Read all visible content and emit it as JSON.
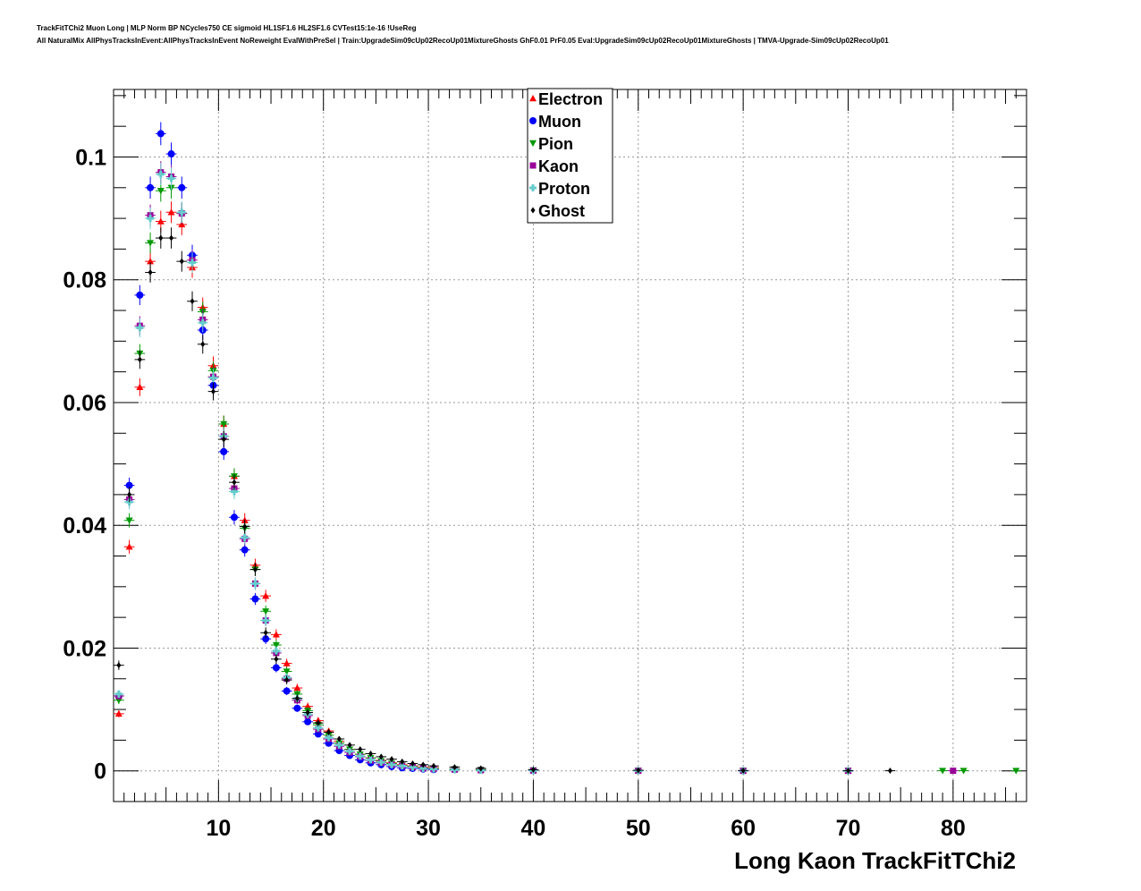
{
  "header": {
    "line1": "TrackFitTChi2 Muon Long | MLP Norm BP NCycles750 CE sigmoid HL1SF1.6 HL2SF1.6 CVTest15:1e-16 !UseReg",
    "line2": "All NaturalMix AllPhysTracksInEvent:AllPhysTracksInEvent NoReweight EvalWithPreSel | Train:UpgradeSim09cUp02RecoUp01MixtureGhosts GhF0.01 PrF0.05 Eval:UpgradeSim09cUp02RecoUp01MixtureGhosts | TMVA-Upgrade-Sim09cUp02RecoUp01"
  },
  "chart_data": {
    "type": "scatter",
    "title": "",
    "xlabel": "Long Kaon TrackFitTChi2",
    "ylabel": "",
    "xlim": [
      0,
      87
    ],
    "ylim": [
      -0.005,
      0.111
    ],
    "xticks": [
      10,
      20,
      30,
      40,
      50,
      60,
      70,
      80
    ],
    "yticks": [
      0,
      0.02,
      0.04,
      0.06,
      0.08,
      0.1
    ],
    "ytick_labels": [
      "0",
      "0.02",
      "0.04",
      "0.06",
      "0.08",
      "0.1"
    ],
    "grid": true,
    "legend_position": "top-center",
    "series": [
      {
        "name": "Electron",
        "color": "#ff0000",
        "marker": "triangle-up",
        "x": [
          0.5,
          1.5,
          2.5,
          3.5,
          4.5,
          5.5,
          6.5,
          7.5,
          8.5,
          9.5,
          10.5,
          11.5,
          12.5,
          13.5,
          14.5,
          15.5,
          16.5,
          17.5,
          18.5,
          19.5,
          20.5,
          21.5,
          22.5,
          23.5,
          24.5,
          25.5,
          26.5,
          27.5,
          28.5,
          29.5,
          30.5,
          32.5,
          35,
          40,
          50,
          60,
          70
        ],
        "y": [
          0.0093,
          0.0365,
          0.0625,
          0.083,
          0.0895,
          0.091,
          0.089,
          0.082,
          0.0755,
          0.066,
          0.0565,
          0.048,
          0.0408,
          0.0335,
          0.0285,
          0.0222,
          0.0175,
          0.0135,
          0.0105,
          0.0082,
          0.0065,
          0.0048,
          0.0035,
          0.0027,
          0.0021,
          0.0017,
          0.0013,
          0.001,
          0.0008,
          0.0006,
          0.0005,
          0.0003,
          0.0002,
          0.0001,
          5e-05,
          2e-05,
          1e-05
        ]
      },
      {
        "name": "Muon",
        "color": "#0000ff",
        "marker": "circle",
        "x": [
          0.5,
          1.5,
          2.5,
          3.5,
          4.5,
          5.5,
          6.5,
          7.5,
          8.5,
          9.5,
          10.5,
          11.5,
          12.5,
          13.5,
          14.5,
          15.5,
          16.5,
          17.5,
          18.5,
          19.5,
          20.5,
          21.5,
          22.5,
          23.5,
          24.5,
          25.5,
          26.5,
          27.5,
          28.5,
          29.5,
          30.5,
          32.5,
          35,
          40,
          50,
          60,
          70
        ],
        "y": [
          0.0122,
          0.0465,
          0.0775,
          0.095,
          0.1038,
          0.1005,
          0.095,
          0.084,
          0.0718,
          0.0628,
          0.052,
          0.0413,
          0.036,
          0.028,
          0.0215,
          0.0168,
          0.013,
          0.0102,
          0.008,
          0.006,
          0.0045,
          0.0033,
          0.0025,
          0.0018,
          0.0013,
          0.001,
          0.0007,
          0.0005,
          0.0004,
          0.0003,
          0.0002,
          0.0002,
          0.0001,
          5e-05,
          2e-05,
          1e-05,
          0.0
        ]
      },
      {
        "name": "Pion",
        "color": "#009900",
        "marker": "triangle-down",
        "x": [
          0.5,
          1.5,
          2.5,
          3.5,
          4.5,
          5.5,
          6.5,
          7.5,
          8.5,
          9.5,
          10.5,
          11.5,
          12.5,
          13.5,
          14.5,
          15.5,
          16.5,
          17.5,
          18.5,
          19.5,
          20.5,
          21.5,
          22.5,
          23.5,
          24.5,
          25.5,
          26.5,
          27.5,
          28.5,
          29.5,
          30.5,
          32.5,
          35,
          40,
          50,
          60,
          70,
          79,
          81,
          86
        ],
        "y": [
          0.0115,
          0.0408,
          0.068,
          0.086,
          0.0945,
          0.095,
          0.0908,
          0.0828,
          0.0748,
          0.0652,
          0.0565,
          0.048,
          0.0395,
          0.0328,
          0.026,
          0.0205,
          0.0162,
          0.0125,
          0.0098,
          0.0075,
          0.0058,
          0.0045,
          0.0035,
          0.0027,
          0.0021,
          0.0016,
          0.0012,
          0.0009,
          0.0007,
          0.0005,
          0.0004,
          0.0003,
          0.0002,
          0.0001,
          5e-05,
          3e-05,
          2e-05,
          2e-05,
          2e-05,
          2e-05
        ]
      },
      {
        "name": "Kaon",
        "color": "#990099",
        "marker": "square",
        "x": [
          0.5,
          1.5,
          2.5,
          3.5,
          4.5,
          5.5,
          6.5,
          7.5,
          8.5,
          9.5,
          10.5,
          11.5,
          12.5,
          13.5,
          14.5,
          15.5,
          16.5,
          17.5,
          18.5,
          19.5,
          20.5,
          21.5,
          22.5,
          23.5,
          24.5,
          25.5,
          26.5,
          27.5,
          28.5,
          29.5,
          30.5,
          32.5,
          35,
          40,
          50,
          60,
          70,
          80
        ],
        "y": [
          0.0122,
          0.0442,
          0.0725,
          0.0905,
          0.0975,
          0.0968,
          0.0908,
          0.0832,
          0.0735,
          0.0642,
          0.0545,
          0.046,
          0.0378,
          0.0305,
          0.0245,
          0.0192,
          0.015,
          0.0115,
          0.009,
          0.0068,
          0.0052,
          0.004,
          0.003,
          0.0023,
          0.0017,
          0.0013,
          0.001,
          0.0008,
          0.0006,
          0.0004,
          0.0003,
          0.0002,
          0.0001,
          5e-05,
          2e-05,
          1e-05,
          1e-05,
          2e-05
        ]
      },
      {
        "name": "Proton",
        "color": "#66cccc",
        "marker": "cross",
        "x": [
          0.5,
          1.5,
          2.5,
          3.5,
          4.5,
          5.5,
          6.5,
          7.5,
          8.5,
          9.5,
          10.5,
          11.5,
          12.5,
          13.5,
          14.5,
          15.5,
          16.5,
          17.5,
          18.5,
          19.5,
          20.5,
          21.5,
          22.5,
          23.5,
          24.5,
          25.5,
          26.5,
          27.5,
          28.5,
          29.5,
          30.5,
          32.5,
          35,
          40,
          50,
          60,
          70
        ],
        "y": [
          0.0125,
          0.0438,
          0.0722,
          0.09,
          0.0972,
          0.0965,
          0.091,
          0.0828,
          0.073,
          0.064,
          0.0545,
          0.0455,
          0.038,
          0.0305,
          0.0245,
          0.0195,
          0.0152,
          0.0118,
          0.0092,
          0.007,
          0.0054,
          0.0042,
          0.0032,
          0.0024,
          0.0018,
          0.0014,
          0.001,
          0.0008,
          0.0006,
          0.0004,
          0.0003,
          0.0002,
          0.0001,
          5e-05,
          2e-05,
          1e-05,
          1e-05
        ]
      },
      {
        "name": "Ghost",
        "color": "#000000",
        "marker": "diamond",
        "x": [
          0.5,
          1.5,
          2.5,
          3.5,
          4.5,
          5.5,
          6.5,
          7.5,
          8.5,
          9.5,
          10.5,
          11.5,
          12.5,
          13.5,
          14.5,
          15.5,
          16.5,
          17.5,
          18.5,
          19.5,
          20.5,
          21.5,
          22.5,
          23.5,
          24.5,
          25.5,
          26.5,
          27.5,
          28.5,
          29.5,
          30.5,
          32.5,
          35,
          40,
          50,
          60,
          70,
          74
        ],
        "y": [
          0.0172,
          0.045,
          0.067,
          0.0812,
          0.0868,
          0.0868,
          0.083,
          0.0765,
          0.0695,
          0.0618,
          0.054,
          0.047,
          0.0398,
          0.0328,
          0.0225,
          0.0182,
          0.0148,
          0.0118,
          0.0095,
          0.0078,
          0.0063,
          0.0052,
          0.0042,
          0.0035,
          0.0028,
          0.0023,
          0.0019,
          0.0015,
          0.0012,
          0.001,
          0.0008,
          0.0006,
          0.0004,
          0.0002,
          0.0001,
          5e-05,
          2e-05,
          2e-05
        ]
      }
    ]
  }
}
